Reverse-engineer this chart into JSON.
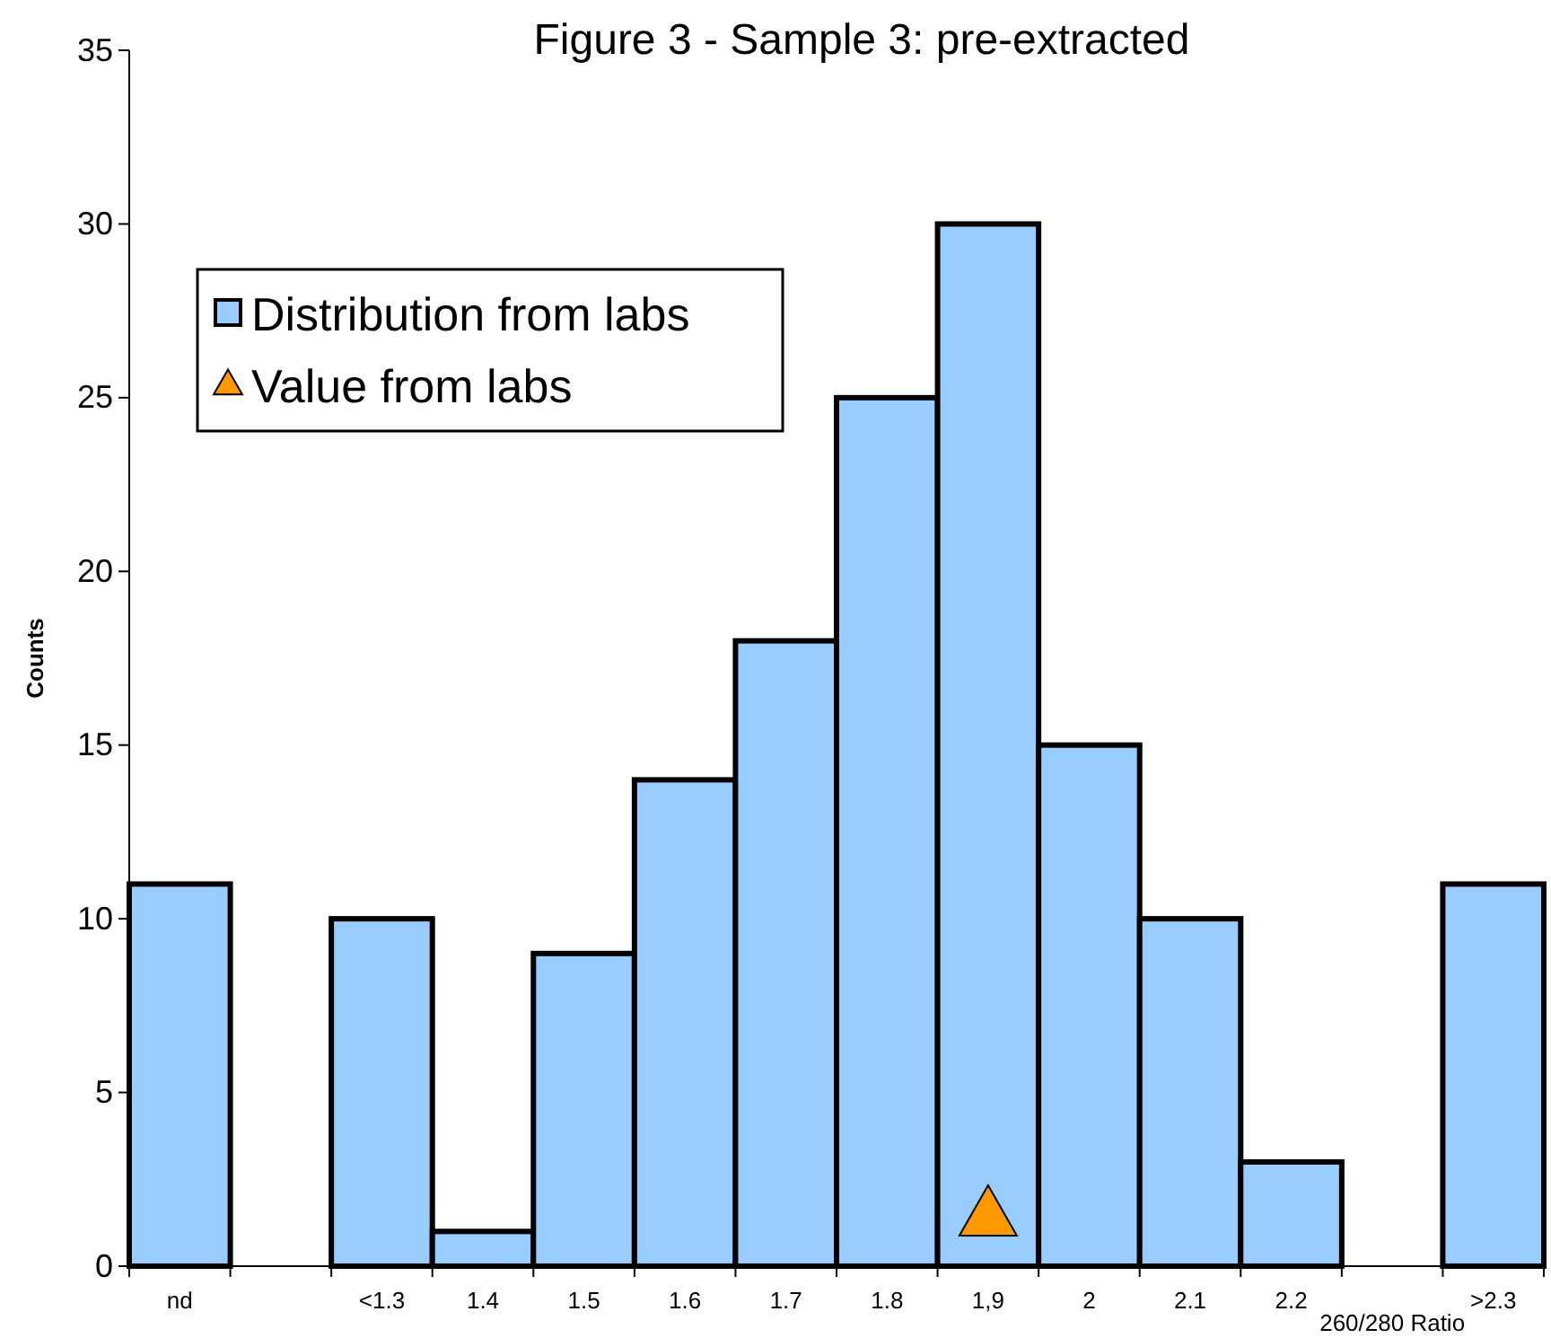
{
  "chart_data": {
    "type": "bar",
    "title": "Figure 3 - Sample 3: pre-extracted",
    "xlabel": "260/280 Ratio",
    "ylabel": "Counts",
    "categories": [
      "nd",
      null,
      "<1.3",
      "1.4",
      "1.5",
      "1.6",
      "1.7",
      "1.8",
      "1,9",
      "2",
      "2.1",
      "2.2",
      null,
      ">2.3"
    ],
    "series": [
      {
        "name": "Distribution from labs",
        "color": "#99ccff",
        "values": [
          11,
          null,
          10,
          1,
          9,
          14,
          18,
          25,
          30,
          15,
          10,
          3,
          null,
          11
        ]
      },
      {
        "name": "Value from labs",
        "type": "scatter",
        "marker": "triangle",
        "color": "#ff9900",
        "x": [
          "1,9"
        ],
        "values": [
          1.6
        ]
      }
    ],
    "ylim": [
      0,
      35
    ],
    "yticks": [
      0,
      5,
      10,
      15,
      20,
      25,
      30,
      35
    ],
    "grid": false,
    "legend": "top left"
  }
}
